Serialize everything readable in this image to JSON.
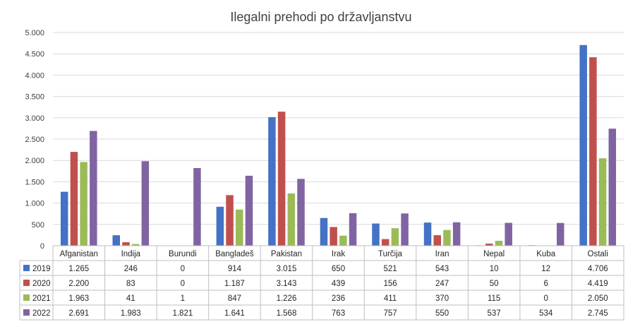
{
  "chart_data": {
    "type": "bar",
    "title": "Ilegalni prehodi po državljanstvu",
    "categories": [
      "Afganistan",
      "Indija",
      "Burundi",
      "Bangladeš",
      "Pakistan",
      "Irak",
      "Turčija",
      "Iran",
      "Nepal",
      "Kuba",
      "Ostali"
    ],
    "series": [
      {
        "name": "2019",
        "color": "#4472c4",
        "values": [
          1265,
          246,
          0,
          914,
          3015,
          650,
          521,
          543,
          10,
          12,
          4706
        ],
        "labels": [
          "1.265",
          "246",
          "0",
          "914",
          "3.015",
          "650",
          "521",
          "543",
          "10",
          "12",
          "4.706"
        ]
      },
      {
        "name": "2020",
        "color": "#c0504d",
        "values": [
          2200,
          83,
          0,
          1187,
          3143,
          439,
          156,
          247,
          50,
          6,
          4419
        ],
        "labels": [
          "2.200",
          "83",
          "0",
          "1.187",
          "3.143",
          "439",
          "156",
          "247",
          "50",
          "6",
          "4.419"
        ]
      },
      {
        "name": "2021",
        "color": "#9bbb59",
        "values": [
          1963,
          41,
          1,
          847,
          1226,
          236,
          411,
          370,
          115,
          0,
          2050
        ],
        "labels": [
          "1.963",
          "41",
          "1",
          "847",
          "1.226",
          "236",
          "411",
          "370",
          "115",
          "0",
          "2.050"
        ]
      },
      {
        "name": "2022",
        "color": "#8064a2",
        "values": [
          2691,
          1983,
          1821,
          1641,
          1568,
          763,
          757,
          550,
          537,
          534,
          2745
        ],
        "labels": [
          "2.691",
          "1.983",
          "1.821",
          "1.641",
          "1.568",
          "763",
          "757",
          "550",
          "537",
          "534",
          "2.745"
        ]
      }
    ],
    "ylim": [
      0,
      5000
    ],
    "yticks": [
      0,
      500,
      1000,
      1500,
      2000,
      2500,
      3000,
      3500,
      4000,
      4500,
      5000
    ],
    "ytick_labels": [
      "0",
      "500",
      "1.000",
      "1.500",
      "2.000",
      "2.500",
      "3.000",
      "3.500",
      "4.000",
      "4.500",
      "5.000"
    ],
    "grid": true,
    "legend": "data-table"
  }
}
